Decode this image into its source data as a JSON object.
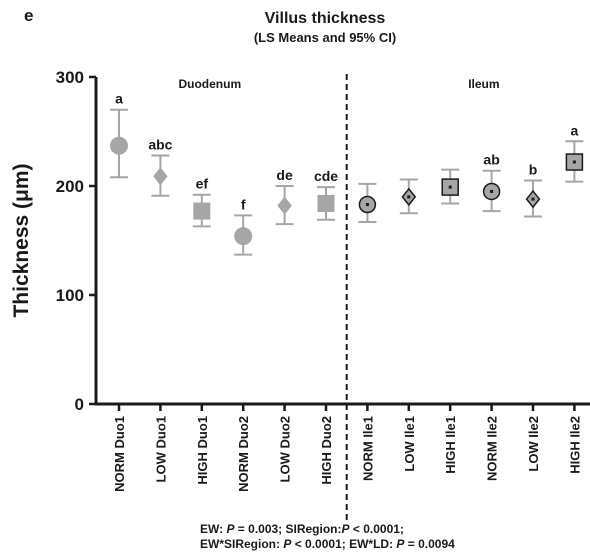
{
  "panel_letter": "e",
  "colors": {
    "grey": "#a6a6a6",
    "dark": "#1a1a1a",
    "errorbar": "#a6a6a6"
  },
  "chart_data": {
    "type": "scatter",
    "title": "Villus thickness",
    "subtitle": "(LS Means and 95% CI)",
    "ylabel": "Thickness (μm)",
    "xlabel": "",
    "ylim": [
      0,
      300
    ],
    "yticks": [
      0,
      100,
      200,
      300
    ],
    "grid": false,
    "region_labels": [
      "Duodenum",
      "Ileum"
    ],
    "divider_between": [
      "HIGH Duo2",
      "NORM Ile1"
    ],
    "categories": [
      "NORM Duo1",
      "LOW Duo1",
      "HIGH Duo1",
      "NORM Duo2",
      "LOW Duo2",
      "HIGH Duo2",
      "NORM Ile1",
      "LOW Ile1",
      "HIGH Ile1",
      "NORM Ile2",
      "LOW Ile2",
      "HIGH Ile2"
    ],
    "values": [
      237,
      209,
      177,
      154,
      182,
      184,
      183,
      190,
      199,
      195,
      188,
      222
    ],
    "ci_lower": [
      208,
      191,
      163,
      137,
      165,
      169,
      167,
      175,
      184,
      177,
      172,
      204
    ],
    "ci_upper": [
      270,
      228,
      192,
      173,
      200,
      199,
      202,
      206,
      215,
      214,
      205,
      241
    ],
    "markers": [
      "circle",
      "diamond",
      "square",
      "circle",
      "diamond",
      "square",
      "circle",
      "diamond",
      "square",
      "circle",
      "diamond",
      "square"
    ],
    "marker_style": [
      "solid",
      "solid",
      "solid",
      "solid",
      "solid",
      "solid",
      "outlined",
      "outlined",
      "outlined",
      "outlined",
      "outlined",
      "outlined"
    ],
    "significance_letters": [
      "a",
      "abc",
      "ef",
      "f",
      "de",
      "cde",
      "",
      "",
      "",
      "ab",
      "b",
      "a"
    ]
  },
  "footnote": {
    "line1_a": "EW: ",
    "line1_p": "P",
    "line1_b": " = 0.003; SIRegion:",
    "line1_p2": "P",
    "line1_c": " <  0.0001;",
    "line2_a": "EW*SIRegion: ",
    "line2_p": "P",
    "line2_b": " < 0.0001; EW*LD: ",
    "line2_p2": "P",
    "line2_c": " = 0.0094"
  }
}
